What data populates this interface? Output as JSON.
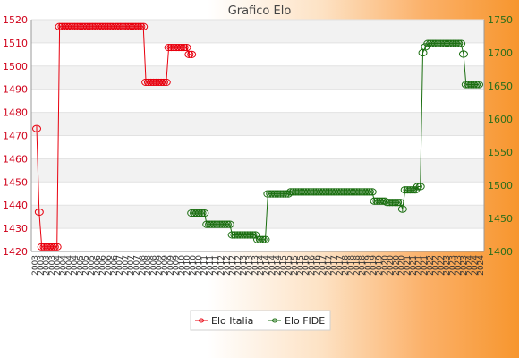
{
  "chart_data": {
    "type": "line",
    "title": "Grafico Elo",
    "y_left": {
      "min": 1420,
      "max": 1520,
      "ticks": [
        1420,
        1430,
        1440,
        1450,
        1460,
        1470,
        1480,
        1490,
        1500,
        1510,
        1520
      ],
      "color": "#e8000e"
    },
    "y_right": {
      "min": 1400,
      "max": 1750,
      "ticks": [
        1400,
        1450,
        1500,
        1550,
        1600,
        1650,
        1700,
        1750
      ],
      "color": "#1a6e10"
    },
    "x_tick_labels": [
      "2003",
      "2004",
      "2005",
      "2006",
      "2007",
      "2008",
      "2009",
      "2010",
      "2011",
      "2012",
      "2013",
      "2014",
      "2015",
      "2016",
      "2017",
      "2018",
      "2019",
      "2020",
      "2021",
      "2022",
      "2023",
      "2024"
    ],
    "legend": [
      {
        "name": "Elo Italia",
        "color": "#e8000e"
      },
      {
        "name": "Elo FIDE",
        "color": "#1a6e10"
      }
    ],
    "legend_position": "bottom",
    "grid": true,
    "series": [
      {
        "name": "Elo Italia",
        "axis": "left",
        "color": "#e8000e",
        "x": [
          0,
          1,
          2,
          3,
          4,
          5,
          6,
          7,
          8,
          9,
          10,
          11,
          12,
          13,
          14,
          15,
          16,
          17,
          18,
          19,
          20,
          21,
          22,
          23,
          24,
          25,
          26,
          27,
          28,
          29,
          30,
          31,
          32,
          33,
          34,
          35,
          36,
          37,
          38,
          39,
          40,
          41,
          42,
          43,
          44,
          45,
          46,
          47,
          48,
          49,
          50,
          51,
          52,
          53,
          54,
          55,
          56,
          57,
          58,
          59,
          60,
          61
        ],
        "values": [
          1473,
          1437,
          1422,
          1422,
          1422,
          1422,
          1422,
          1422,
          1422,
          1517,
          1517,
          1517,
          1517,
          1517,
          1517,
          1517,
          1517,
          1517,
          1517,
          1517,
          1517,
          1517,
          1517,
          1517,
          1517,
          1517,
          1517,
          1517,
          1517,
          1517,
          1517,
          1517,
          1517,
          1517,
          1517,
          1517,
          1517,
          1517,
          1517,
          1517,
          1517,
          1517,
          1517,
          1493,
          1493,
          1493,
          1493,
          1493,
          1493,
          1493,
          1493,
          1493,
          1508,
          1508,
          1508,
          1508,
          1508,
          1508,
          1508,
          1508,
          1505,
          1505
        ]
      },
      {
        "name": "Elo FIDE",
        "axis": "right",
        "color": "#1a6e10",
        "x": [
          61,
          62,
          63,
          64,
          65,
          66,
          67,
          68,
          69,
          70,
          71,
          72,
          73,
          74,
          75,
          76,
          77,
          78,
          79,
          80,
          81,
          82,
          83,
          84,
          85,
          86,
          87,
          88,
          89,
          90,
          91,
          92,
          93,
          94,
          95,
          96,
          97,
          98,
          99,
          100,
          101,
          102,
          103,
          104,
          105,
          106,
          107,
          108,
          109,
          110,
          111,
          112,
          113,
          114,
          115,
          116,
          117,
          118,
          119,
          120,
          121,
          122,
          123,
          124,
          125,
          126,
          127,
          128,
          129,
          130,
          131,
          132,
          133,
          134,
          135,
          136,
          137,
          138,
          139,
          140,
          141,
          142,
          143,
          144,
          145,
          146,
          147,
          148,
          149,
          150,
          151,
          152,
          153,
          154,
          155,
          156,
          157,
          158,
          159,
          160,
          161,
          162,
          163,
          164,
          165,
          166,
          167,
          168,
          169,
          170,
          171,
          172,
          173,
          174
        ],
        "values": [
          1458,
          1458,
          1458,
          1458,
          1458,
          1458,
          1441,
          1441,
          1441,
          1441,
          1441,
          1441,
          1441,
          1441,
          1441,
          1441,
          1425,
          1425,
          1425,
          1425,
          1425,
          1425,
          1425,
          1425,
          1425,
          1425,
          1418,
          1418,
          1418,
          1418,
          1487,
          1487,
          1487,
          1487,
          1487,
          1487,
          1487,
          1487,
          1487,
          1490,
          1490,
          1490,
          1490,
          1490,
          1490,
          1490,
          1490,
          1490,
          1490,
          1490,
          1490,
          1490,
          1490,
          1490,
          1490,
          1490,
          1490,
          1490,
          1490,
          1490,
          1490,
          1490,
          1490,
          1490,
          1490,
          1490,
          1490,
          1490,
          1490,
          1490,
          1490,
          1490,
          1476,
          1476,
          1476,
          1476,
          1476,
          1474,
          1474,
          1474,
          1474,
          1474,
          1474,
          1464,
          1493,
          1493,
          1493,
          1493,
          1493,
          1498,
          1498,
          1700,
          1709,
          1714,
          1714,
          1714,
          1714,
          1714,
          1714,
          1714,
          1714,
          1714,
          1714,
          1714,
          1714,
          1714,
          1714,
          1698,
          1652,
          1652,
          1652,
          1652,
          1652,
          1652
        ]
      }
    ]
  }
}
